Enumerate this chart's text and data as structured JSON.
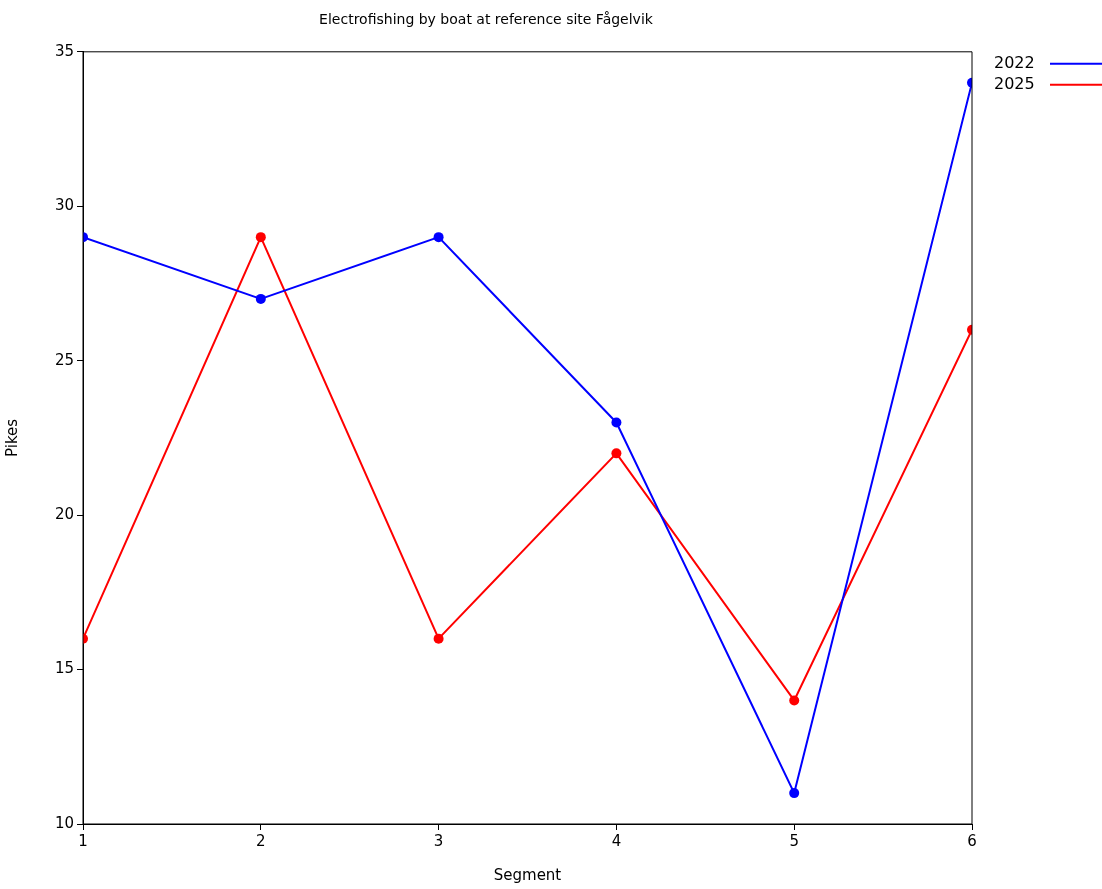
{
  "chart_data": {
    "type": "line",
    "title": "Electrofishing by boat at reference site Fågelvik",
    "xlabel": "Segment",
    "ylabel": "Pikes",
    "x": [
      1,
      2,
      3,
      4,
      5,
      6
    ],
    "series": [
      {
        "name": "2022",
        "color": "#0000ff",
        "values": [
          29,
          27,
          29,
          23,
          11,
          34
        ]
      },
      {
        "name": "2025",
        "color": "#ff0000",
        "values": [
          16,
          29,
          16,
          22,
          14,
          26
        ]
      }
    ],
    "xlim": [
      1,
      6
    ],
    "xticks": [
      1,
      2,
      3,
      4,
      5,
      6
    ],
    "ylim": [
      10,
      35
    ],
    "yticks": [
      10,
      15,
      20,
      25,
      30,
      35
    ],
    "grid": false,
    "legend": "top right",
    "marker": "circle",
    "line_style": "solid"
  }
}
